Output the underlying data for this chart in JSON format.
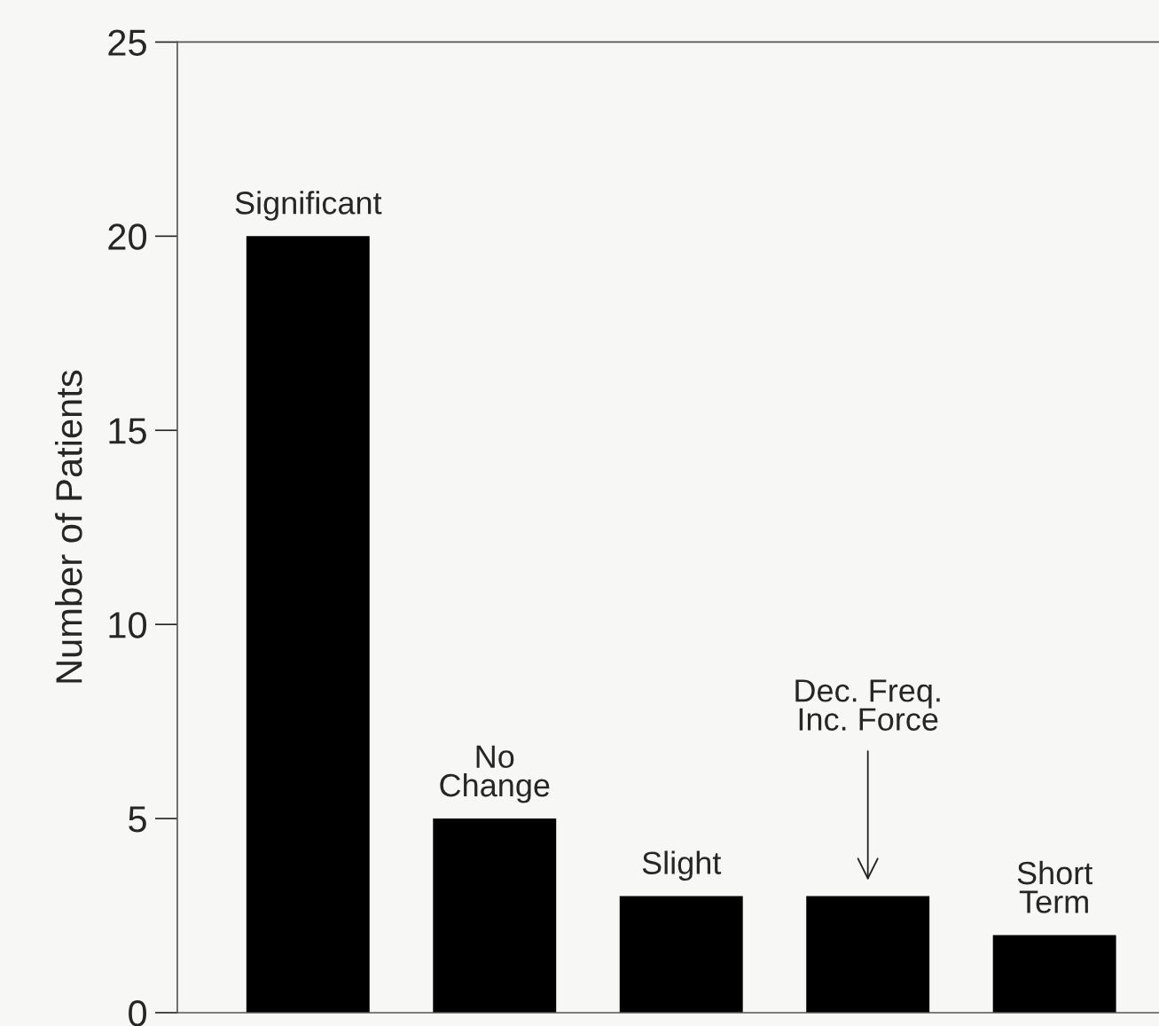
{
  "chart_data": {
    "type": "bar",
    "ylabel": "Number of Patients",
    "categories": [
      "Significant",
      "No\nChange",
      "Slight",
      "Dec. Freq.\nInc. Force",
      "Short\nTerm"
    ],
    "values": [
      20,
      5,
      3,
      3,
      2
    ],
    "color": "#000000",
    "ylim": [
      0,
      25
    ],
    "yticks": [
      0,
      5,
      10,
      15,
      20,
      25
    ],
    "grid": false
  }
}
